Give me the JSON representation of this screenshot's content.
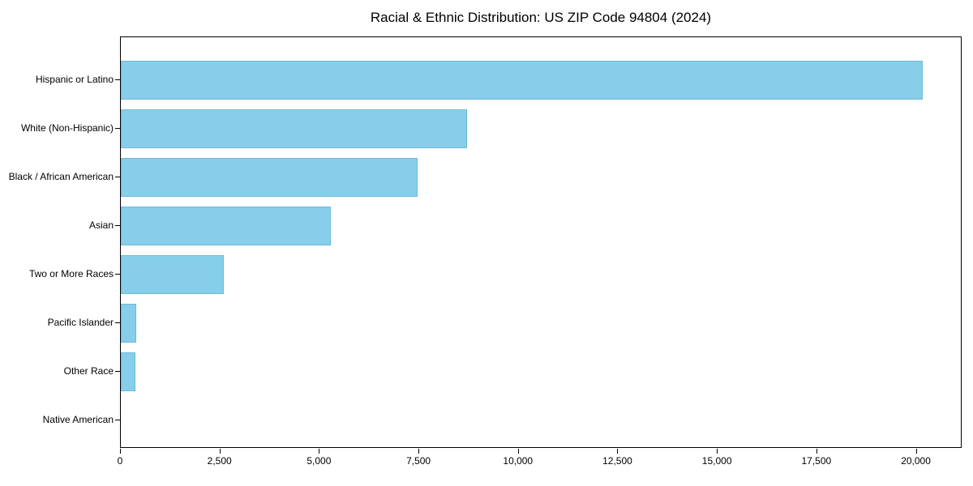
{
  "title": "Racial & Ethnic Distribution: US ZIP Code 94804 (2024)",
  "colors": {
    "bar_fill": "#87CEEB",
    "axis": "#000000",
    "text": "#000000",
    "background": "#ffffff"
  },
  "chart_data": {
    "type": "bar",
    "orientation": "horizontal",
    "title": "Racial & Ethnic Distribution: US ZIP Code 94804 (2024)",
    "categories": [
      "Hispanic or Latino",
      "White (Non-Hispanic)",
      "Black / African American",
      "Asian",
      "Two or More Races",
      "Pacific Islander",
      "Other Race",
      "Native American"
    ],
    "values": [
      20150,
      8700,
      7450,
      5270,
      2590,
      380,
      365,
      0
    ],
    "xlabel": "",
    "ylabel": "",
    "xlim": [
      0,
      21150
    ],
    "xticks": [
      0,
      2500,
      5000,
      7500,
      10000,
      12500,
      15000,
      17500,
      20000
    ],
    "xtick_labels": [
      "0",
      "2,500",
      "5,000",
      "7,500",
      "10,000",
      "12,500",
      "15,000",
      "17,500",
      "20,000"
    ],
    "grid": false,
    "legend": "none"
  }
}
